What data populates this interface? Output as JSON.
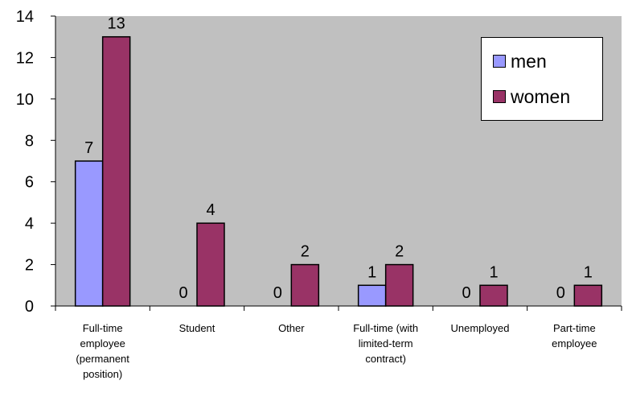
{
  "chart_data": {
    "type": "bar",
    "categories": [
      "Full-time employee (permanent position)",
      "Student",
      "Other",
      "Full-time (with limited-term contract)",
      "Unemployed",
      "Part-time employee"
    ],
    "category_lines": [
      [
        "Full-time",
        "employee",
        "(permanent",
        "position)"
      ],
      [
        "Student"
      ],
      [
        "Other"
      ],
      [
        "Full-time (with",
        "limited-term",
        "contract)"
      ],
      [
        "Unemployed"
      ],
      [
        "Part-time",
        "employee"
      ]
    ],
    "series": [
      {
        "name": "men",
        "values": [
          7,
          0,
          0,
          1,
          0,
          0
        ],
        "color": "#9999ff"
      },
      {
        "name": "women",
        "values": [
          13,
          4,
          2,
          2,
          1,
          1
        ],
        "color": "#993366"
      }
    ],
    "yticks": [
      "0",
      "2",
      "4",
      "6",
      "8",
      "10",
      "12",
      "14"
    ],
    "ylim": [
      0,
      14
    ],
    "title": "",
    "xlabel": "",
    "ylabel": "",
    "legend_position": "top-right",
    "grid": false,
    "plot_background": "#c0c0c0",
    "data_labels": true
  }
}
